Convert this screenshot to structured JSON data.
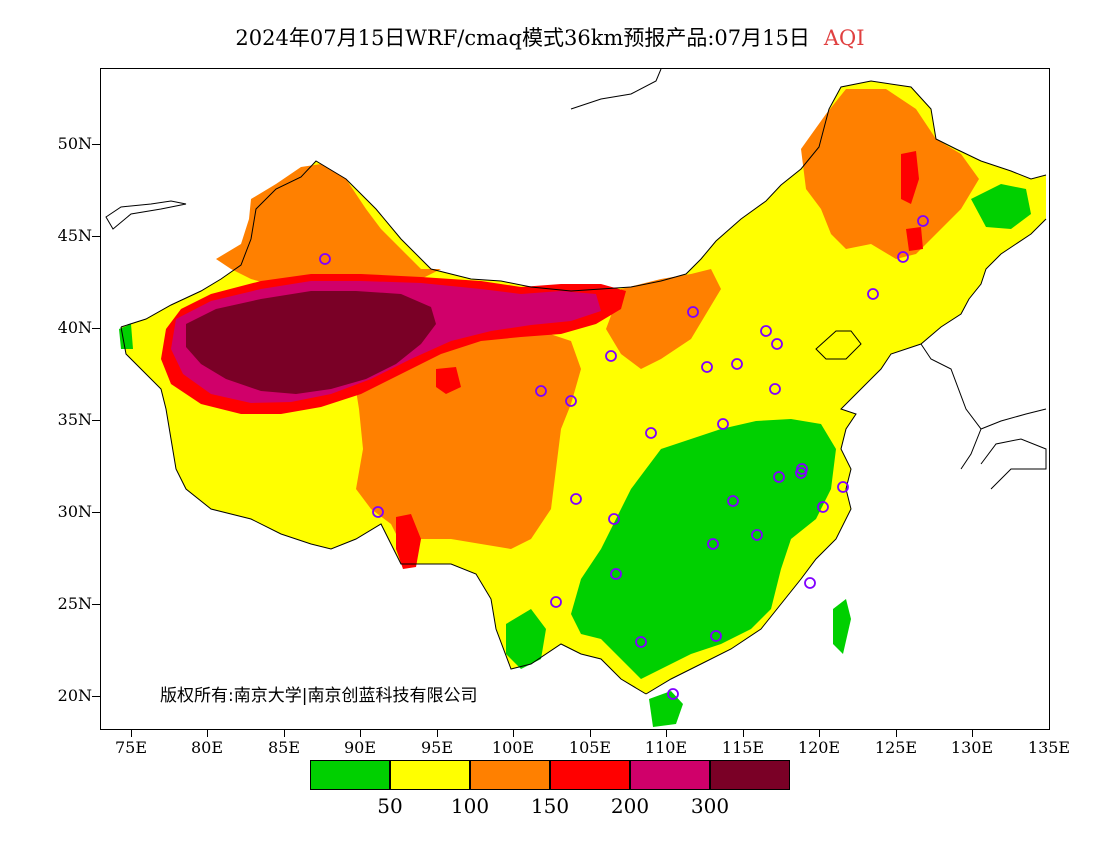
{
  "header": {
    "title": "2024年07月15日WRF/cmaq模式36km预报产品:07月15日",
    "variable": "AQI"
  },
  "axes": {
    "y_ticks": [
      "50N",
      "45N",
      "40N",
      "35N",
      "30N",
      "25N",
      "20N"
    ],
    "x_ticks": [
      "75E",
      "80E",
      "85E",
      "90E",
      "95E",
      "100E",
      "105E",
      "110E",
      "115E",
      "120E",
      "125E",
      "130E",
      "135E"
    ]
  },
  "legend": {
    "colors": [
      "#00d000",
      "#ffff00",
      "#ff8000",
      "#ff0000",
      "#d0006a",
      "#7a0026"
    ],
    "labels": [
      "50",
      "100",
      "150",
      "200",
      "300"
    ]
  },
  "copyright": "版权所有:南京大学|南京创蓝科技有限公司",
  "colors": {
    "green": "#00d000",
    "yellow": "#ffff00",
    "orange": "#ff8000",
    "red": "#ff0000",
    "magenta": "#d0006a",
    "maroon": "#7a0026",
    "city_marker": "#8000ff"
  }
}
